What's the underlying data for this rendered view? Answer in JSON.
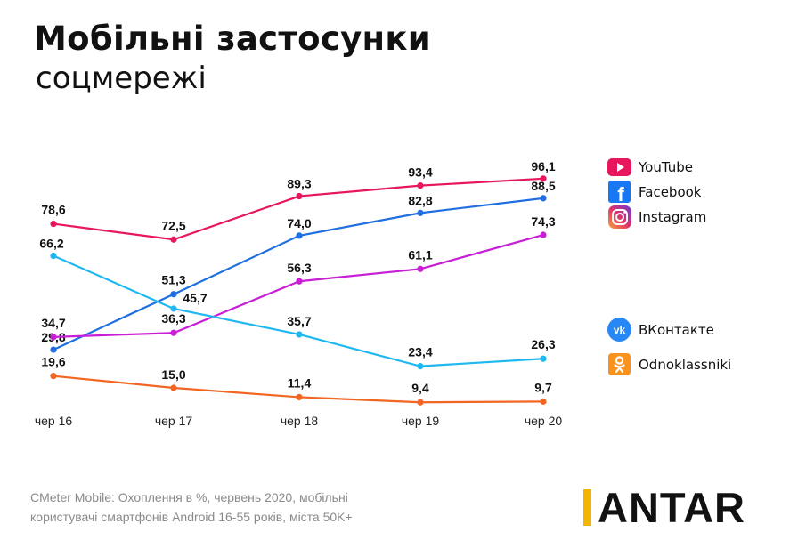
{
  "title": "Мобільні застосунки",
  "subtitle": "соцмережі",
  "source": "CMeter Mobile: Охоплення в %, червень 2020, мобільні користувачі смартфонів Android 16-55 років, міста 50K+",
  "logo": {
    "rest": "ANTAR",
    "accent_color": "#f5b400"
  },
  "legend": [
    {
      "name": "YouTube",
      "icon": "youtube-icon",
      "color": "#e8175d"
    },
    {
      "name": "Facebook",
      "icon": "facebook-icon",
      "color": "#1877f2"
    },
    {
      "name": "Instagram",
      "icon": "instagram-icon",
      "color": "#c13584"
    },
    {
      "name": "ВКонтакте",
      "icon": "vk-icon",
      "color": "#2787f5"
    },
    {
      "name": "Odnoklassniki",
      "icon": "odnoklassniki-icon",
      "color": "#f7931e"
    }
  ],
  "chart_data": {
    "type": "line",
    "categories": [
      "чер 16",
      "чер 17",
      "чер 18",
      "чер 19",
      "чер 20"
    ],
    "series": [
      {
        "name": "YouTube",
        "color": "#e8175d",
        "values": [
          78.6,
          72.5,
          89.3,
          93.4,
          96.1
        ],
        "labels": [
          "78,6",
          "72,5",
          "89,3",
          "93,4",
          "96,1"
        ]
      },
      {
        "name": "Facebook",
        "color": "#1f6fe0",
        "values": [
          29.8,
          51.3,
          74.0,
          82.8,
          88.5
        ],
        "labels": [
          "29,8",
          "51,3",
          "74,0",
          "82,8",
          "88,5"
        ]
      },
      {
        "name": "Instagram",
        "color": "#c81fd6",
        "values": [
          34.7,
          36.3,
          56.3,
          61.1,
          74.3
        ],
        "labels": [
          "34,7",
          "36,3",
          "56,3",
          "61,1",
          "74,3"
        ]
      },
      {
        "name": "ВКонтакте",
        "color": "#1fb8f0",
        "values": [
          66.2,
          45.7,
          35.7,
          23.4,
          26.3
        ],
        "labels": [
          "66,2",
          "45,7",
          "35,7",
          "23,4",
          "26,3"
        ]
      },
      {
        "name": "Odnoklassniki",
        "color": "#f26522",
        "values": [
          19.6,
          15.0,
          11.4,
          9.4,
          9.7
        ],
        "labels": [
          "19,6",
          "15,0",
          "11,4",
          "9,4",
          "9,7"
        ]
      }
    ],
    "grid": false,
    "legend_position": "right"
  }
}
